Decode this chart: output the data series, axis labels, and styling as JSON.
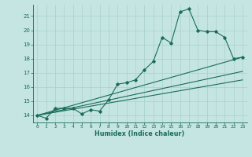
{
  "xlabel": "Humidex (Indice chaleur)",
  "xlim": [
    -0.5,
    23.5
  ],
  "ylim": [
    13.5,
    21.8
  ],
  "yticks": [
    14,
    15,
    16,
    17,
    18,
    19,
    20,
    21
  ],
  "xticks": [
    0,
    1,
    2,
    3,
    4,
    5,
    6,
    7,
    8,
    9,
    10,
    11,
    12,
    13,
    14,
    15,
    16,
    17,
    18,
    19,
    20,
    21,
    22,
    23
  ],
  "bg_color": "#c5e5e3",
  "line_color": "#1a6b5a",
  "grid_color": "#a8d0ce",
  "line1_x": [
    0,
    1,
    2,
    3,
    4,
    5,
    6,
    7,
    8,
    9,
    10,
    11,
    12,
    13,
    14,
    15,
    16,
    17,
    18,
    19,
    20,
    21,
    22,
    23
  ],
  "line1_y": [
    14.0,
    13.8,
    14.5,
    14.5,
    14.5,
    14.1,
    14.4,
    14.3,
    15.1,
    16.2,
    16.3,
    16.5,
    17.2,
    17.8,
    19.5,
    19.1,
    21.3,
    21.5,
    20.0,
    19.9,
    19.9,
    19.5,
    18.0,
    18.1
  ],
  "line2_x": [
    0,
    23
  ],
  "line2_y": [
    14.0,
    18.1
  ],
  "line3_x": [
    0,
    23
  ],
  "line3_y": [
    14.0,
    17.1
  ],
  "line4_x": [
    0,
    23
  ],
  "line4_y": [
    14.0,
    16.5
  ]
}
